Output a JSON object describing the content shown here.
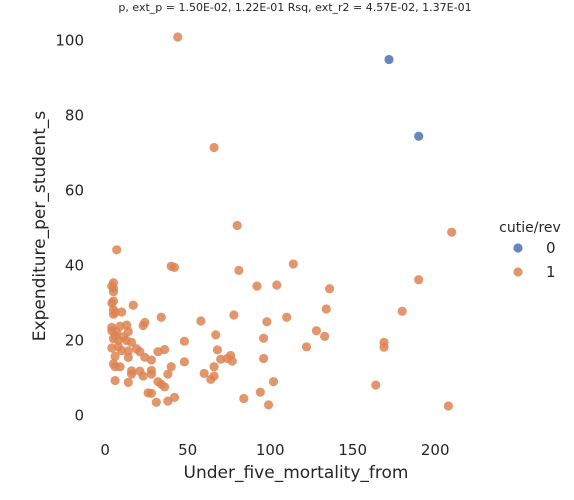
{
  "chart_data": {
    "type": "scatter",
    "title": "p, ext_p = 1.50E-02, 1.22E-01 Rsq, ext_r2 = 4.57E-02, 1.37E-01",
    "xlabel": "Under_five_mortality_from",
    "ylabel": "Expenditure_per_student_s",
    "xlim": [
      -8,
      232
    ],
    "ylim": [
      -5.5,
      105
    ],
    "xticks": [
      0,
      50,
      100,
      150,
      200
    ],
    "yticks": [
      0,
      20,
      40,
      60,
      80,
      100
    ],
    "grid": false,
    "legend": {
      "title": "cutie/rev",
      "placement": "right",
      "entries": [
        {
          "label": "0",
          "color": "#4C72B0"
        },
        {
          "label": "1",
          "color": "#DD8452"
        }
      ]
    },
    "series": [
      {
        "name": "0",
        "color": "#4C72B0",
        "points": [
          [
            172,
            95
          ],
          [
            190,
            74.5
          ]
        ]
      },
      {
        "name": "1",
        "color": "#DD8452",
        "points": [
          [
            44,
            101
          ],
          [
            66,
            71.5
          ],
          [
            80,
            50.7
          ],
          [
            7,
            44.2
          ],
          [
            210,
            48.9
          ],
          [
            40,
            39.8
          ],
          [
            42,
            39.5
          ],
          [
            114,
            40.4
          ],
          [
            81,
            38.7
          ],
          [
            190,
            36.2
          ],
          [
            4,
            34.5
          ],
          [
            5,
            35.4
          ],
          [
            5,
            34.0
          ],
          [
            5,
            33.0
          ],
          [
            92,
            34.5
          ],
          [
            104,
            34.8
          ],
          [
            136,
            33.8
          ],
          [
            5,
            30.5
          ],
          [
            4,
            30.0
          ],
          [
            17,
            29.4
          ],
          [
            5,
            28.2
          ],
          [
            6,
            27.5
          ],
          [
            10,
            27.6
          ],
          [
            5,
            27.0
          ],
          [
            78,
            26.8
          ],
          [
            34,
            26.2
          ],
          [
            110,
            26.2
          ],
          [
            58,
            25.2
          ],
          [
            98,
            25.0
          ],
          [
            24,
            24.8
          ],
          [
            23,
            24.0
          ],
          [
            4,
            23.5
          ],
          [
            4,
            22.6
          ],
          [
            7,
            22.3
          ],
          [
            9,
            23.8
          ],
          [
            13,
            24.1
          ],
          [
            14,
            22.4
          ],
          [
            11,
            21.0
          ],
          [
            6,
            21.3
          ],
          [
            5,
            20.5
          ],
          [
            8,
            20.0
          ],
          [
            13,
            20.0
          ],
          [
            16,
            19.5
          ],
          [
            180,
            27.8
          ],
          [
            134,
            28.4
          ],
          [
            128,
            22.6
          ],
          [
            133,
            21.1
          ],
          [
            67,
            21.5
          ],
          [
            96,
            20.6
          ],
          [
            48,
            19.8
          ],
          [
            169,
            19.5
          ],
          [
            169,
            18.2
          ],
          [
            122,
            18.3
          ],
          [
            4,
            18.0
          ],
          [
            8,
            18.3
          ],
          [
            10,
            17.3
          ],
          [
            14,
            17.2
          ],
          [
            19,
            17.8
          ],
          [
            21,
            17.0
          ],
          [
            36,
            17.6
          ],
          [
            32,
            17.0
          ],
          [
            68,
            17.5
          ],
          [
            76,
            16.0
          ],
          [
            74,
            15.2
          ],
          [
            70,
            15.0
          ],
          [
            77,
            14.5
          ],
          [
            96,
            15.2
          ],
          [
            6,
            15.8
          ],
          [
            14,
            15.5
          ],
          [
            24,
            15.5
          ],
          [
            28,
            14.8
          ],
          [
            48,
            14.3
          ],
          [
            5,
            13.8
          ],
          [
            6,
            13.0
          ],
          [
            9,
            13.0
          ],
          [
            40,
            13.0
          ],
          [
            66,
            13.0
          ],
          [
            16,
            11.9
          ],
          [
            21,
            11.8
          ],
          [
            28,
            12.0
          ],
          [
            16,
            11.0
          ],
          [
            23,
            10.5
          ],
          [
            38,
            11.0
          ],
          [
            28,
            11.0
          ],
          [
            60,
            11.2
          ],
          [
            66,
            10.5
          ],
          [
            64,
            9.6
          ],
          [
            14,
            8.8
          ],
          [
            6,
            9.3
          ],
          [
            32,
            9.0
          ],
          [
            34,
            8.3
          ],
          [
            36,
            7.6
          ],
          [
            102,
            9.0
          ],
          [
            164,
            8.1
          ],
          [
            26,
            6.0
          ],
          [
            28,
            5.9
          ],
          [
            38,
            3.8
          ],
          [
            42,
            4.8
          ],
          [
            31,
            3.5
          ],
          [
            84,
            4.5
          ],
          [
            94,
            6.2
          ],
          [
            99,
            2.8
          ],
          [
            208,
            2.5
          ]
        ]
      }
    ]
  }
}
